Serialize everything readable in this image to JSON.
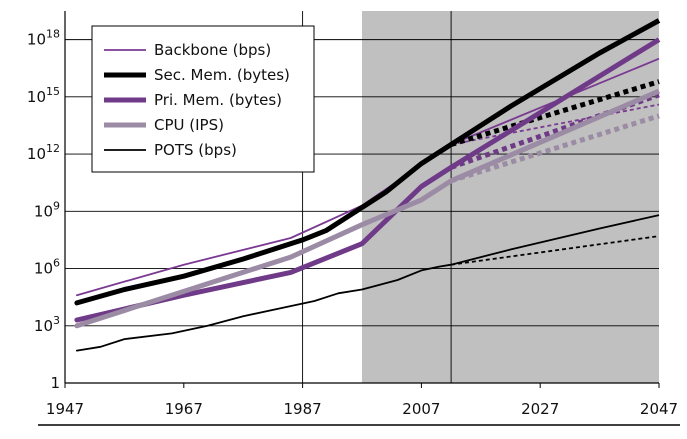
{
  "chart_data": {
    "type": "line",
    "title": "",
    "xlabel": "",
    "ylabel": "",
    "x_ticks": [
      1947,
      1967,
      1987,
      2007,
      2027,
      2047
    ],
    "x_tick_labels": [
      "1947",
      "1967",
      "1987",
      "2007",
      "2027",
      "2047"
    ],
    "y_ticks_log10": [
      0,
      3,
      6,
      9,
      12,
      15,
      18
    ],
    "y_tick_labels": [
      {
        "base": "1",
        "exp": ""
      },
      {
        "base": "10",
        "exp": "3"
      },
      {
        "base": "10",
        "exp": "6"
      },
      {
        "base": "10",
        "exp": "9"
      },
      {
        "base": "10",
        "exp": "12"
      },
      {
        "base": "10",
        "exp": "15"
      },
      {
        "base": "10",
        "exp": "18"
      }
    ],
    "xlim": [
      1947,
      2047
    ],
    "ylim_log10": [
      0,
      19.5
    ],
    "y_scale": "log",
    "grid": true,
    "shaded_region": {
      "from": 1997,
      "to": 2047,
      "color": "#c0c0c0"
    },
    "legend_position": "top-left",
    "series": [
      {
        "name": "Backbone (bps)",
        "color": "#7a3a92",
        "weight": "thin",
        "points_log10": [
          [
            1949,
            4.6
          ],
          [
            1967,
            6.2
          ],
          [
            1985,
            7.6
          ],
          [
            1997,
            9.3
          ],
          [
            2012,
            12.5
          ]
        ],
        "projection_solid": [
          [
            2012,
            12.5
          ],
          [
            2047,
            17.0
          ]
        ],
        "projection_dotted": [
          [
            2012,
            12.5
          ],
          [
            2047,
            14.6
          ]
        ]
      },
      {
        "name": "Sec. Mem. (bytes)",
        "color": "#000000",
        "weight": "thick",
        "points_log10": [
          [
            1949,
            4.2
          ],
          [
            1957,
            4.9
          ],
          [
            1967,
            5.6
          ],
          [
            1977,
            6.5
          ],
          [
            1987,
            7.5
          ],
          [
            1991,
            8.0
          ],
          [
            1995,
            8.8
          ],
          [
            2001,
            10.0
          ],
          [
            2007,
            11.5
          ],
          [
            2012,
            12.5
          ]
        ],
        "projection_solid": [
          [
            2012,
            12.5
          ],
          [
            2022,
            14.5
          ],
          [
            2037,
            17.3
          ],
          [
            2047,
            19.0
          ]
        ],
        "projection_dotted": [
          [
            2012,
            12.5
          ],
          [
            2047,
            15.8
          ]
        ]
      },
      {
        "name": "Pri. Mem. (bytes)",
        "color": "#6f3a88",
        "weight": "thick",
        "points_log10": [
          [
            1949,
            3.3
          ],
          [
            1967,
            4.6
          ],
          [
            1985,
            5.8
          ],
          [
            1997,
            7.3
          ],
          [
            2007,
            10.3
          ],
          [
            2012,
            11.3
          ]
        ],
        "projection_solid": [
          [
            2012,
            11.3
          ],
          [
            2047,
            18.0
          ]
        ],
        "projection_dotted": [
          [
            2012,
            11.3
          ],
          [
            2047,
            15.1
          ]
        ]
      },
      {
        "name": "CPU (IPS)",
        "color": "#9b8ba4",
        "weight": "thick",
        "points_log10": [
          [
            1949,
            3.0
          ],
          [
            1967,
            4.8
          ],
          [
            1985,
            6.6
          ],
          [
            1997,
            8.3
          ],
          [
            2007,
            9.6
          ],
          [
            2012,
            10.6
          ]
        ],
        "projection_solid": [
          [
            2012,
            10.6
          ],
          [
            2047,
            15.3
          ]
        ],
        "projection_dotted": [
          [
            2012,
            10.6
          ],
          [
            2047,
            14.0
          ]
        ]
      },
      {
        "name": "POTS (bps)",
        "color": "#000000",
        "weight": "thin",
        "points_log10": [
          [
            1949,
            1.7
          ],
          [
            1953,
            1.9
          ],
          [
            1957,
            2.3
          ],
          [
            1965,
            2.6
          ],
          [
            1971,
            3.0
          ],
          [
            1977,
            3.5
          ],
          [
            1983,
            3.9
          ],
          [
            1989,
            4.3
          ],
          [
            1993,
            4.7
          ],
          [
            1997,
            4.9
          ],
          [
            2003,
            5.4
          ],
          [
            2007,
            5.9
          ],
          [
            2010,
            6.1
          ],
          [
            2012,
            6.2
          ]
        ],
        "projection_solid": [
          [
            2012,
            6.2
          ],
          [
            2022,
            7.0
          ],
          [
            2037,
            8.1
          ],
          [
            2047,
            8.8
          ]
        ],
        "projection_dotted": [
          [
            2012,
            6.2
          ],
          [
            2047,
            7.7
          ]
        ]
      }
    ]
  }
}
